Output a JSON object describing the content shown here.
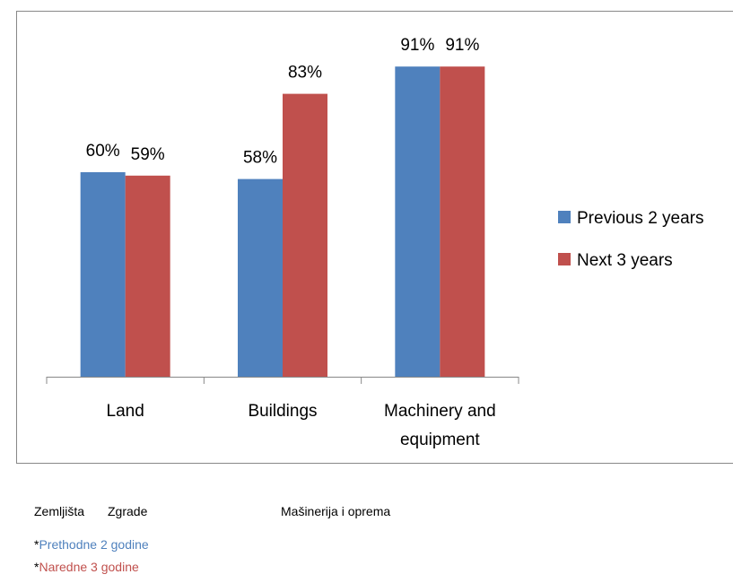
{
  "chart_data": {
    "type": "bar",
    "categories": [
      "Land",
      "Buildings",
      "Machinery and equipment"
    ],
    "series": [
      {
        "name": "Previous 2 years",
        "color": "#4f81bd",
        "values": [
          60,
          58,
          91
        ],
        "value_labels": [
          "60%",
          "58%",
          "91%"
        ]
      },
      {
        "name": "Next 3 years",
        "color": "#c0504d",
        "values": [
          59,
          83,
          91
        ],
        "value_labels": [
          "59%",
          "83%",
          "91%"
        ]
      }
    ],
    "ylim": [
      0,
      100
    ],
    "grid": false,
    "legend": "right"
  },
  "notes": {
    "categories": [
      "Zemljišta",
      "Zgrade",
      "Mašinerija i oprema"
    ],
    "series": [
      {
        "marker": "*",
        "text": "Prethodne 2 godine",
        "color": "#4f81bd"
      },
      {
        "marker": "*",
        "text": "Naredne 3 godine",
        "color": "#c0504d"
      }
    ]
  }
}
